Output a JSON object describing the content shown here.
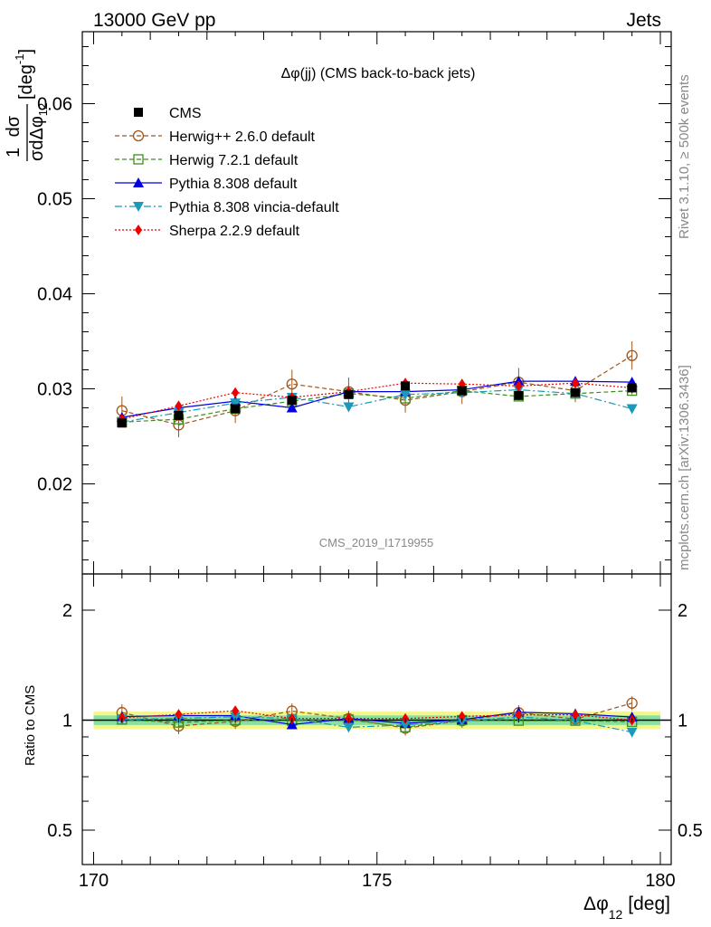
{
  "header": {
    "left_title": "13000 GeV pp",
    "right_title": "Jets",
    "plot_title": "Δφ(jj) (CMS back-to-back jets)",
    "side_label_top": "Rivet 3.1.10, ≥ 500k events",
    "side_label_bottom": "mcplots.cern.ch [arXiv:1306.3436]",
    "analysis_tag": "CMS_2019_I1719955"
  },
  "axes": {
    "y_main_label_frac_num": "1",
    "y_main_label_dsigma": "dσ",
    "y_main_label_den": "σdΔφ",
    "y_main_label_den_sub": "12",
    "y_main_label_unit": "[deg",
    "y_main_label_unit_sup": "-1",
    "y_main_label_unit_close": "]",
    "y_ratio_label": "Ratio to CMS",
    "x_label": "Δφ",
    "x_label_sub": "12",
    "x_label_unit": "[deg]",
    "x_ticks": [
      "170",
      "175",
      "180"
    ],
    "y_main_ticks": [
      "0.02",
      "0.03",
      "0.04",
      "0.05",
      "0.06"
    ],
    "y_ratio_ticks": [
      "0.5",
      "1",
      "2"
    ],
    "y_ratio_ticks_right": [
      "0.5",
      "1",
      "2"
    ]
  },
  "colors": {
    "cms": "#000000",
    "herwigpp": "#a0561a",
    "herwig7": "#3b8e1a",
    "pythia": "#0000e0",
    "vincia": "#1a9ab8",
    "sherpa": "#ee0000",
    "band_inner": "#88e0a0",
    "band_outer": "#f5f58a"
  },
  "chart_data": {
    "type": "line",
    "title": "Δφ(jj) (CMS back-to-back jets)",
    "xlabel": "Δφ12 [deg]",
    "ylabel": "1/σ dσ/dΔφ12 [deg^-1]",
    "xlim": [
      170,
      180
    ],
    "ylim": [
      0.011,
      0.068
    ],
    "ratio_ylim": [
      0.4,
      2.5
    ],
    "x": [
      170.5,
      171.5,
      172.5,
      173.5,
      174.5,
      175.5,
      176.5,
      177.5,
      178.5,
      179.5
    ],
    "series": [
      {
        "name": "CMS",
        "key": "cms",
        "values": [
          0.0264,
          0.0272,
          0.0279,
          0.0288,
          0.0294,
          0.0303,
          0.0298,
          0.0293,
          0.0296,
          0.0301
        ],
        "errors": [
          0.0004,
          0.0004,
          0.0004,
          0.0004,
          0.0004,
          0.0004,
          0.0004,
          0.0004,
          0.0004,
          0.0004
        ]
      },
      {
        "name": "Herwig++ 2.6.0 default",
        "key": "herwigpp",
        "values": [
          0.0277,
          0.0262,
          0.0277,
          0.0305,
          0.0297,
          0.0288,
          0.0297,
          0.0307,
          0.0298,
          0.0335
        ],
        "errors": [
          0.0015,
          0.0013,
          0.0013,
          0.0015,
          0.0015,
          0.0013,
          0.0013,
          0.0015,
          0.0012,
          0.0015
        ]
      },
      {
        "name": "Herwig 7.2.1 default",
        "key": "herwig7",
        "values": [
          0.0265,
          0.0268,
          0.0279,
          0.0287,
          0.0295,
          0.029,
          0.0298,
          0.0292,
          0.0295,
          0.0298
        ],
        "errors": [
          0.0004,
          0.0004,
          0.0004,
          0.0004,
          0.0004,
          0.0004,
          0.0004,
          0.0004,
          0.0004,
          0.0004
        ]
      },
      {
        "name": "Pythia 8.308 default",
        "key": "pythia",
        "values": [
          0.027,
          0.028,
          0.0287,
          0.028,
          0.0297,
          0.0297,
          0.0299,
          0.0308,
          0.0308,
          0.0307
        ],
        "errors": [
          0.0004,
          0.0004,
          0.0004,
          0.0004,
          0.0004,
          0.0004,
          0.0004,
          0.0004,
          0.0004,
          0.0004
        ]
      },
      {
        "name": "Pythia 8.308 vincia-default",
        "key": "vincia",
        "values": [
          0.0265,
          0.0275,
          0.0285,
          0.0291,
          0.0281,
          0.0294,
          0.0296,
          0.0299,
          0.0295,
          0.0279
        ],
        "errors": [
          0.0004,
          0.0004,
          0.0004,
          0.0004,
          0.0004,
          0.0004,
          0.0004,
          0.0004,
          0.0004,
          0.0004
        ]
      },
      {
        "name": "Sherpa 2.2.9 default",
        "key": "sherpa",
        "values": [
          0.0268,
          0.0282,
          0.0296,
          0.0291,
          0.0297,
          0.0306,
          0.0305,
          0.0303,
          0.0306,
          0.0301
        ],
        "errors": [
          0.0005,
          0.0005,
          0.0005,
          0.0005,
          0.0005,
          0.0005,
          0.0005,
          0.0005,
          0.0005,
          0.0005
        ]
      }
    ],
    "ratio_band": {
      "inner": 0.03,
      "outer": 0.055
    }
  }
}
